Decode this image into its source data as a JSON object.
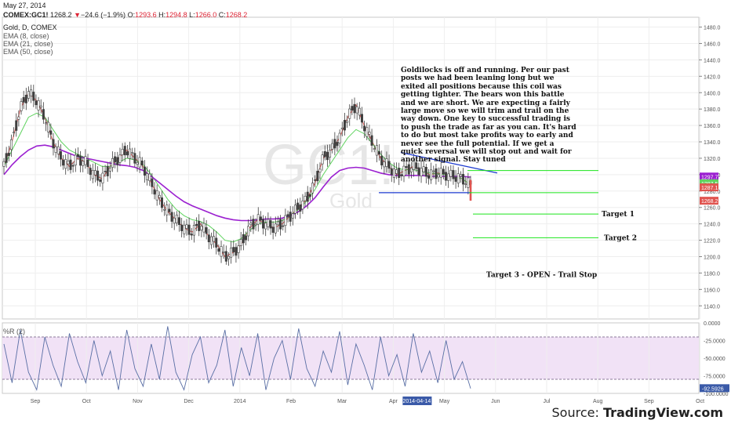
{
  "header": {
    "date": "May 27, 2014",
    "symbol": "COMEX:GC1!",
    "last": "1268.2",
    "change": "−24.6 (−1.9%)",
    "open_label": "O:",
    "open": "1293.6",
    "high_label": "H:",
    "high": "1294.8",
    "low_label": "L:",
    "low": "1266.0",
    "close_label": "C:",
    "close": "1268.2",
    "chart_title": "Gold, D, COMEX",
    "ema1": "EMA (8, close)",
    "ema2": "EMA (21, close)",
    "ema3": "EMA (50, close)"
  },
  "watermark": {
    "ticker": "GC1!",
    "name": "Gold"
  },
  "commentary": "Goldilocks is off and running.   Per our past posts we had been leaning long but we exited all positions because this coil was getting tighter. The bears won this battle and we are short.  We are expecting a fairly large move so we will trim and trail on the way down. One key to successful trading is to push the trade as far as you can.  It's hard to do but most take profits way to early and never see the full potential.  If we get a quick reversal we will stop out and wait for another signal.  Stay tuned",
  "targets": [
    "Target 1",
    "Target 2",
    "Target 3 - OPEN - Trail Stop"
  ],
  "indicator_label": "%R (2)",
  "source": {
    "prefix": "Source: ",
    "site": "TradingView.com"
  },
  "colors": {
    "ema8": "#e0544f",
    "ema21": "#5fd35f",
    "ema50": "#9b20d0",
    "candle": "#3f3f3f",
    "trendline": "#1d3ad0",
    "target_line": "#1be51b",
    "williams": "#5a6fa5",
    "band_fill": "#f1e2f6"
  },
  "chart_data": [
    {
      "type": "candlestick",
      "title": "Gold, D, COMEX",
      "ylim": [
        1124,
        1492
      ],
      "y_ticks": [
        1140,
        1160,
        1180,
        1200,
        1220,
        1240,
        1260,
        1280,
        1300,
        1320,
        1340,
        1360,
        1380,
        1400,
        1420,
        1440,
        1460,
        1480
      ],
      "x_ticks": [
        "Sep",
        "Oct",
        "Nov",
        "Dec",
        "2014",
        "Feb",
        "Mar",
        "Apr",
        "May",
        "Jun",
        "Jul",
        "Aug",
        "Sep",
        "Oct"
      ],
      "highlighted_date": "2014-04-14",
      "grid": true,
      "price_tags": [
        {
          "value": "1297.7",
          "color": "#9b20d0"
        },
        {
          "value": "1287.5",
          "color": "#5fd35f"
        },
        {
          "value": "1287.1",
          "color": "#e0544f"
        },
        {
          "value": "1268.2",
          "color": "#e0544f"
        }
      ],
      "series": [
        {
          "name": "EMA (8, close)",
          "color": "#e0544f",
          "y": [
            1310,
            1340,
            1380,
            1400,
            1390,
            1370,
            1340,
            1320,
            1310,
            1320,
            1315,
            1300,
            1295,
            1310,
            1320,
            1330,
            1320,
            1310,
            1290,
            1270,
            1255,
            1245,
            1235,
            1230,
            1240,
            1225,
            1215,
            1200,
            1205,
            1215,
            1235,
            1245,
            1240,
            1235,
            1240,
            1250,
            1260,
            1270,
            1290,
            1320,
            1330,
            1345,
            1370,
            1385,
            1360,
            1340,
            1320,
            1310,
            1300,
            1305,
            1310,
            1305,
            1300,
            1302,
            1300,
            1298,
            1295,
            1287
          ]
        },
        {
          "name": "EMA (21, close)",
          "color": "#5fd35f",
          "y": [
            1310,
            1330,
            1350,
            1370,
            1375,
            1370,
            1355,
            1340,
            1330,
            1325,
            1320,
            1315,
            1310,
            1310,
            1315,
            1320,
            1318,
            1312,
            1300,
            1285,
            1270,
            1258,
            1250,
            1245,
            1243,
            1238,
            1230,
            1220,
            1218,
            1222,
            1232,
            1240,
            1242,
            1242,
            1244,
            1250,
            1258,
            1268,
            1282,
            1300,
            1315,
            1330,
            1345,
            1355,
            1350,
            1338,
            1325,
            1315,
            1308,
            1306,
            1306,
            1304,
            1302,
            1301,
            1300,
            1298,
            1295,
            1287
          ]
        },
        {
          "name": "EMA (50, close)",
          "color": "#9b20d0",
          "y": [
            1300,
            1312,
            1322,
            1330,
            1335,
            1336,
            1334,
            1330,
            1326,
            1322,
            1320,
            1318,
            1316,
            1314,
            1312,
            1311,
            1309,
            1305,
            1298,
            1290,
            1282,
            1274,
            1267,
            1262,
            1258,
            1254,
            1250,
            1247,
            1245,
            1244,
            1244,
            1245,
            1246,
            1246,
            1247,
            1250,
            1255,
            1262,
            1272,
            1285,
            1297,
            1305,
            1308,
            1309,
            1308,
            1305,
            1302,
            1300,
            1299,
            1299,
            1299,
            1299,
            1298,
            1298,
            1298,
            1298,
            1298,
            1297
          ]
        }
      ],
      "annotations": [
        {
          "type": "trendline",
          "from": [
            "Apr 4",
            1327
          ],
          "to": [
            "Jun 12",
            1302
          ]
        },
        {
          "type": "trendline",
          "from": [
            "Mar 26",
            1278
          ],
          "to": [
            "May 29",
            1278
          ]
        },
        {
          "type": "hline",
          "value": 1305,
          "label": ""
        },
        {
          "type": "hline",
          "value": 1278,
          "label": ""
        },
        {
          "type": "hline",
          "value": 1252,
          "label": "Target 1"
        },
        {
          "type": "hline",
          "value": 1223,
          "label": "Target 2"
        }
      ]
    },
    {
      "type": "line",
      "title": "%R (2)",
      "ylim": [
        -100,
        0
      ],
      "y_ticks": [
        0,
        -25,
        -50,
        -75,
        -100
      ],
      "band": [
        -80,
        -20
      ],
      "last_value": "-92.5926",
      "series": [
        {
          "name": "%R (2)",
          "y": [
            -30,
            -85,
            -10,
            -70,
            -95,
            -20,
            -60,
            -90,
            -15,
            -55,
            -85,
            -25,
            -75,
            -40,
            -95,
            -10,
            -65,
            -90,
            -30,
            -80,
            -5,
            -70,
            -95,
            -45,
            -20,
            -85,
            -60,
            -10,
            -90,
            -35,
            -75,
            -15,
            -95,
            -50,
            -25,
            -80,
            -8,
            -65,
            -90,
            -40,
            -70,
            -12,
            -88,
            -30,
            -60,
            -95,
            -20,
            -75,
            -45,
            -90,
            -15,
            -70,
            -40,
            -85,
            -25,
            -80,
            -55,
            -93
          ]
        }
      ]
    }
  ]
}
